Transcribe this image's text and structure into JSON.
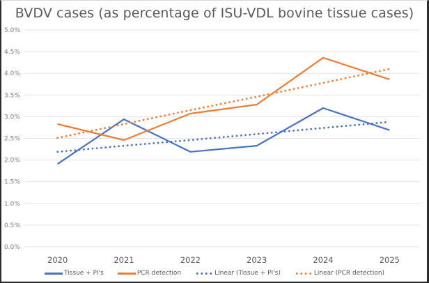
{
  "chart_data": {
    "type": "line",
    "title": "BVDV cases (as percentage of ISU-VDL bovine tissue cases)",
    "xlabel": "",
    "ylabel": "",
    "categories": [
      "2020",
      "2021",
      "2022",
      "2023",
      "2024",
      "2025"
    ],
    "ylim": [
      0,
      5.0
    ],
    "yticks": [
      "0.0%",
      "0.5%",
      "1.0%",
      "1.5%",
      "2.0%",
      "2.5%",
      "3.0%",
      "3.5%",
      "4.0%",
      "4.5%",
      "5.0%"
    ],
    "ytick_values": [
      0,
      0.5,
      1.0,
      1.5,
      2.0,
      2.5,
      3.0,
      3.5,
      4.0,
      4.5,
      5.0
    ],
    "grid": true,
    "legend_position": "bottom",
    "series": [
      {
        "name": "Tissue + PI's",
        "style": "solid",
        "color": "#4472c4",
        "values": [
          1.91,
          2.94,
          2.19,
          2.33,
          3.2,
          2.69
        ]
      },
      {
        "name": "PCR detection",
        "style": "solid",
        "color": "#ed7d31",
        "values": [
          2.83,
          2.46,
          3.07,
          3.28,
          4.36,
          3.86
        ]
      },
      {
        "name": "Linear (Tissue + PI's)",
        "style": "dotted",
        "color": "#4472c4",
        "trendline_of": "Tissue + PI's",
        "values": [
          2.19,
          2.33,
          2.46,
          2.6,
          2.74,
          2.88
        ]
      },
      {
        "name": "Linear (PCR detection)",
        "style": "dotted",
        "color": "#ed7d31",
        "trendline_of": "PCR detection",
        "values": [
          2.51,
          2.83,
          3.15,
          3.46,
          3.78,
          4.1
        ]
      }
    ]
  }
}
